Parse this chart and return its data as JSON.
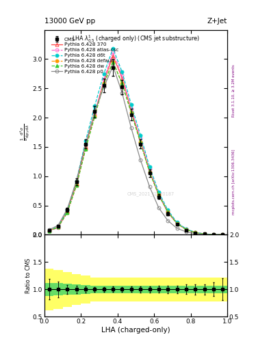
{
  "title_top": "13000 GeV pp",
  "title_right": "Z+Jet",
  "plot_title": "LHA $\\lambda^{1}_{0.5}$ (charged only) (CMS jet substructure)",
  "xlabel": "LHA (charged-only)",
  "ylabel_ratio": "Ratio to CMS",
  "right_label1": "Rivet 3.1.10, ≥ 3.2M events",
  "right_label2": "mcplots.cern.ch [arXiv:1306.3436]",
  "watermark": "CMS_2021_I1920187",
  "xdata": [
    0.025,
    0.075,
    0.125,
    0.175,
    0.225,
    0.275,
    0.325,
    0.375,
    0.425,
    0.475,
    0.525,
    0.575,
    0.625,
    0.675,
    0.725,
    0.775,
    0.825,
    0.875,
    0.925,
    0.975
  ],
  "cms_data": [
    0.08,
    0.14,
    0.42,
    0.9,
    1.55,
    2.1,
    2.55,
    2.85,
    2.52,
    2.05,
    1.55,
    1.05,
    0.65,
    0.36,
    0.18,
    0.08,
    0.032,
    0.011,
    0.004,
    0.001
  ],
  "cms_err": [
    0.015,
    0.02,
    0.035,
    0.06,
    0.08,
    0.1,
    0.12,
    0.14,
    0.12,
    0.1,
    0.08,
    0.06,
    0.04,
    0.025,
    0.013,
    0.007,
    0.003,
    0.001,
    0.0005,
    0.0002
  ],
  "p370_data": [
    0.07,
    0.13,
    0.4,
    0.88,
    1.52,
    2.08,
    2.62,
    3.05,
    2.68,
    2.12,
    1.6,
    1.08,
    0.68,
    0.38,
    0.19,
    0.09,
    0.036,
    0.012,
    0.004,
    0.001
  ],
  "atlas_csc_data": [
    0.06,
    0.12,
    0.38,
    0.84,
    1.48,
    2.05,
    2.65,
    3.12,
    2.72,
    2.15,
    1.65,
    1.12,
    0.7,
    0.4,
    0.2,
    0.1,
    0.04,
    0.014,
    0.005,
    0.001
  ],
  "d6t_data": [
    0.065,
    0.145,
    0.42,
    0.92,
    1.6,
    2.2,
    2.75,
    3.18,
    2.78,
    2.22,
    1.7,
    1.16,
    0.73,
    0.42,
    0.21,
    0.1,
    0.04,
    0.014,
    0.005,
    0.001
  ],
  "default_data": [
    0.065,
    0.13,
    0.38,
    0.84,
    1.46,
    2.02,
    2.58,
    2.95,
    2.58,
    2.08,
    1.58,
    1.07,
    0.68,
    0.39,
    0.19,
    0.09,
    0.036,
    0.012,
    0.004,
    0.001
  ],
  "dw_data": [
    0.065,
    0.13,
    0.38,
    0.84,
    1.46,
    2.02,
    2.58,
    2.95,
    2.58,
    2.08,
    1.58,
    1.07,
    0.68,
    0.39,
    0.19,
    0.09,
    0.036,
    0.012,
    0.004,
    0.001
  ],
  "p0_data": [
    0.085,
    0.16,
    0.44,
    0.92,
    1.55,
    2.1,
    2.52,
    2.88,
    2.42,
    1.82,
    1.28,
    0.82,
    0.46,
    0.24,
    0.11,
    0.05,
    0.018,
    0.006,
    0.002,
    0.0005
  ],
  "ylim_main": [
    0,
    3.5
  ],
  "ylim_ratio": [
    0.5,
    2.0
  ],
  "yticks_main": [
    0,
    0.5,
    1.0,
    1.5,
    2.0,
    2.5,
    3.0
  ],
  "yticks_ratio": [
    0.5,
    1.0,
    1.5,
    2.0
  ],
  "color_p370": "#ff4444",
  "color_atlas_csc": "#ff66cc",
  "color_d6t": "#00cccc",
  "color_default": "#ff9900",
  "color_dw": "#33cc33",
  "color_p0": "#888888",
  "color_cms": "#000000",
  "ratio_yellow_outer": 0.22,
  "ratio_green_inner": 0.07
}
